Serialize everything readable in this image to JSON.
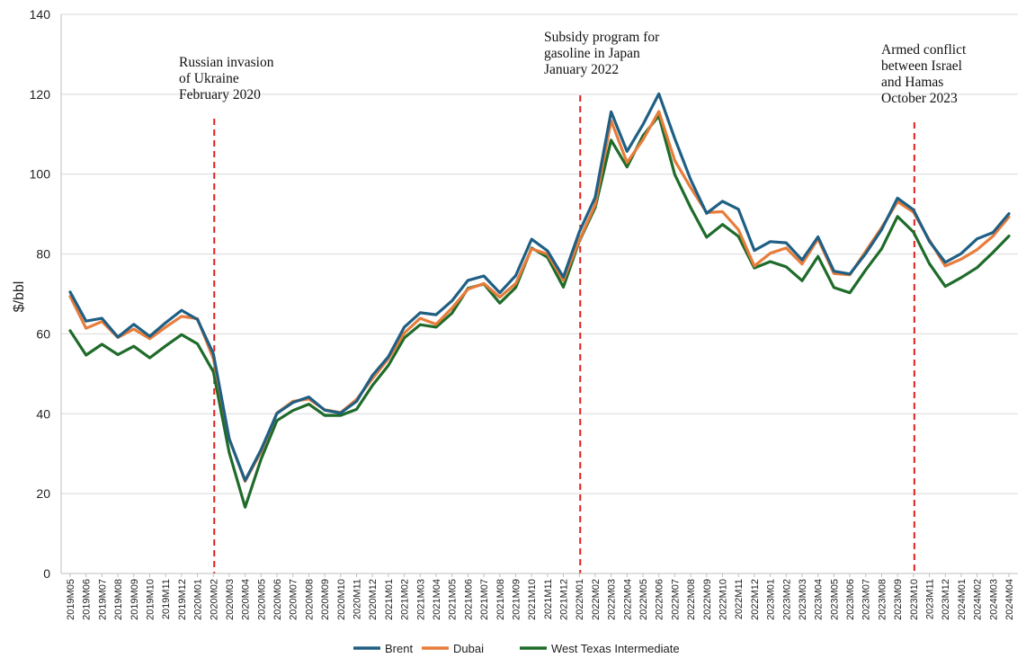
{
  "chart_data": {
    "type": "line",
    "ylabel": "$/bbl",
    "ylim": [
      0,
      140
    ],
    "yticks": [
      0,
      20,
      40,
      60,
      80,
      100,
      120,
      140
    ],
    "grid": "horizontal",
    "legend_position": "bottom",
    "categories": [
      "2019M05",
      "2019M06",
      "2019M07",
      "2019M08",
      "2019M09",
      "2019M10",
      "2019M11",
      "2019M12",
      "2020M01",
      "2020M02",
      "2020M03",
      "2020M04",
      "2020M05",
      "2020M06",
      "2020M07",
      "2020M08",
      "2020M09",
      "2020M10",
      "2020M11",
      "2020M12",
      "2021M01",
      "2021M02",
      "2021M03",
      "2021M04",
      "2021M05",
      "2021M06",
      "2021M07",
      "2021M08",
      "2021M09",
      "2021M10",
      "2021M11",
      "2021M12",
      "2022M01",
      "2022M02",
      "2022M03",
      "2022M04",
      "2022M05",
      "2022M06",
      "2022M07",
      "2022M08",
      "2022M09",
      "2022M10",
      "2022M11",
      "2022M12",
      "2023M01",
      "2023M02",
      "2023M03",
      "2023M04",
      "2023M05",
      "2023M06",
      "2023M07",
      "2023M08",
      "2023M09",
      "2023M10",
      "2023M11",
      "2023M12",
      "2024M01",
      "2024M02",
      "2024M03",
      "2024M04"
    ],
    "series": [
      {
        "name": "Brent",
        "color": "#1f5f84",
        "values": [
          70.5,
          63.2,
          63.9,
          59.2,
          62.4,
          59.4,
          62.8,
          65.9,
          63.6,
          55.0,
          33.7,
          23.3,
          31.0,
          40.1,
          42.8,
          44.2,
          40.9,
          40.2,
          43.1,
          49.6,
          54.3,
          61.7,
          65.3,
          64.8,
          68.3,
          73.4,
          74.5,
          70.3,
          74.6,
          83.7,
          80.8,
          74.2,
          85.5,
          94.2,
          115.6,
          105.7,
          112.4,
          120.1,
          108.9,
          98.6,
          90.2,
          93.2,
          91.2,
          80.9,
          83.1,
          82.8,
          78.5,
          84.3,
          75.7,
          75.0,
          80.1,
          86.1,
          94.0,
          91.1,
          83.2,
          77.9,
          80.1,
          83.8,
          85.4,
          90.1
        ]
      },
      {
        "name": "Dubai",
        "color": "#e87c3a",
        "values": [
          69.4,
          61.4,
          63.1,
          59.1,
          61.2,
          58.8,
          61.7,
          64.4,
          63.8,
          53.8,
          33.8,
          23.1,
          30.5,
          40.2,
          43.1,
          43.7,
          41.0,
          40.3,
          43.6,
          48.8,
          53.8,
          60.2,
          63.9,
          62.4,
          66.5,
          71.2,
          72.6,
          69.2,
          72.6,
          81.3,
          80.0,
          73.4,
          83.4,
          92.3,
          113.4,
          102.9,
          108.6,
          115.7,
          103.4,
          96.6,
          90.4,
          90.6,
          86.1,
          77.0,
          80.2,
          81.5,
          77.5,
          83.8,
          75.1,
          74.8,
          80.7,
          86.6,
          93.1,
          90.5,
          83.5,
          77.0,
          78.7,
          81.1,
          84.5,
          89.3
        ]
      },
      {
        "name": "West Texas Intermediate",
        "color": "#1e6b2a",
        "values": [
          60.8,
          54.7,
          57.4,
          54.8,
          56.9,
          54.0,
          57.0,
          59.8,
          57.5,
          50.5,
          30.3,
          16.6,
          28.6,
          38.3,
          40.8,
          42.4,
          39.6,
          39.6,
          41.1,
          47.1,
          52.1,
          59.0,
          62.3,
          61.7,
          65.2,
          71.4,
          72.5,
          67.7,
          71.6,
          81.5,
          79.2,
          71.7,
          83.2,
          91.6,
          108.5,
          101.8,
          109.6,
          114.6,
          99.9,
          91.6,
          84.2,
          87.4,
          84.4,
          76.5,
          78.1,
          76.8,
          73.3,
          79.4,
          71.6,
          70.3,
          76.0,
          81.3,
          89.4,
          85.5,
          77.6,
          71.9,
          74.1,
          76.6,
          80.4,
          84.5
        ]
      }
    ],
    "annotations": [
      {
        "at": "2020M02",
        "lines": [
          "Russian invasion",
          "of Ukraine",
          "February 2020"
        ]
      },
      {
        "at": "2022M01",
        "lines": [
          "Subsidy program for",
          "gasoline in Japan",
          " January 2022"
        ]
      },
      {
        "at": "2023M10",
        "lines": [
          "Armed conflict",
          "between Israel",
          "and Hamas",
          "October 2023"
        ]
      }
    ]
  }
}
